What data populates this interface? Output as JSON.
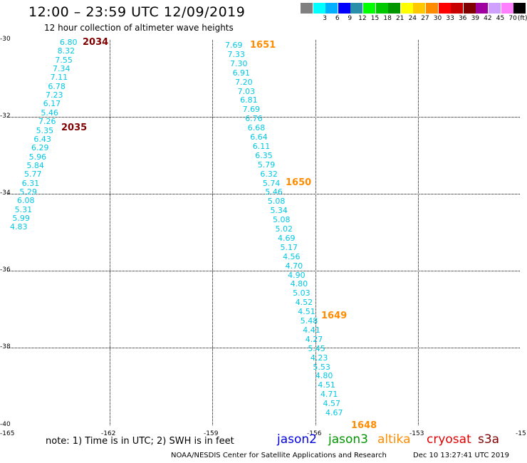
{
  "title": "12:00 – 23:59 UTC 12/09/2019",
  "subtitle": "12 hour collection of altimeter wave heights",
  "legend": {
    "swatches": [
      {
        "color": "#808080",
        "label": ""
      },
      {
        "color": "#00ffff",
        "label": "3"
      },
      {
        "color": "#00b0ff",
        "label": "6"
      },
      {
        "color": "#0000ff",
        "label": "9"
      },
      {
        "color": "#2a8fa8",
        "label": "12"
      },
      {
        "color": "#00ff00",
        "label": "15"
      },
      {
        "color": "#00c800",
        "label": "18"
      },
      {
        "color": "#009600",
        "label": "21"
      },
      {
        "color": "#ffff00",
        "label": "24"
      },
      {
        "color": "#ffc800",
        "label": "27"
      },
      {
        "color": "#ff8c00",
        "label": "30"
      },
      {
        "color": "#ff0000",
        "label": "33"
      },
      {
        "color": "#c80000",
        "label": "36"
      },
      {
        "color": "#800000",
        "label": "39"
      },
      {
        "color": "#a000a0",
        "label": "42"
      },
      {
        "color": "#d0a0ff",
        "label": "45"
      },
      {
        "color": "#ff80ff",
        "label": "70"
      },
      {
        "color": "#000000",
        "label": "(ft)"
      }
    ]
  },
  "axes": {
    "x_ticks": [
      "-165",
      "-162",
      "-159",
      "-156",
      "-153",
      "-15"
    ],
    "y_ticks": [
      "-30",
      "-32",
      "-34",
      "-36",
      "-38",
      "-40"
    ]
  },
  "tracks": [
    {
      "values": [
        "6.80",
        "8.32",
        "7.55",
        "7.34",
        "7.11",
        "6.78",
        "7.23",
        "6.17",
        "5.46",
        "7.26",
        "5.35",
        "6.43",
        "6.29",
        "5.96",
        "5.84",
        "5.77",
        "6.31",
        "5.29",
        "6.08",
        "5.31",
        "5.99",
        "4.83"
      ],
      "times": [
        {
          "label": "2034",
          "color": "#800000"
        },
        {
          "label": "2035",
          "color": "#800000"
        }
      ]
    },
    {
      "values": [
        "7.69",
        "7.33",
        "7.30",
        "6.91",
        "7.20",
        "7.03",
        "6.81",
        "7.69",
        "6.76",
        "6.68",
        "6.64",
        "6.11",
        "6.35",
        "5.79",
        "6.32",
        "5.74",
        "5.46",
        "5.08",
        "5.34",
        "5.08",
        "5.02",
        "4.69",
        "5.17",
        "4.56",
        "4.70",
        "4.90",
        "4.80",
        "5.03",
        "4.52",
        "4.51",
        "5.48",
        "4.41",
        "4.27",
        "5.45",
        "4.23",
        "5.53",
        "4.80",
        "4.51",
        "4.71",
        "4.57",
        "4.67"
      ],
      "times": [
        {
          "label": "1651",
          "color": "#ff8c00"
        },
        {
          "label": "1650",
          "color": "#ff8c00"
        },
        {
          "label": "1649",
          "color": "#ff8c00"
        },
        {
          "label": "1648",
          "color": "#ff8c00"
        }
      ]
    }
  ],
  "note": "note: 1) Time is in UTC; 2) SWH is in feet",
  "satellites": [
    {
      "name": "jason2",
      "color": "#0000e0"
    },
    {
      "name": "jason3",
      "color": "#009600"
    },
    {
      "name": "altika",
      "color": "#ff8c00"
    },
    {
      "name": "cryosat",
      "color": "#e00000"
    },
    {
      "name": "s3a",
      "color": "#800000"
    }
  ],
  "credit": "NOAA/NESDIS Center for Satellite Applications and Research",
  "timestamp": "Dec 10 13:27:41 UTC 2019"
}
